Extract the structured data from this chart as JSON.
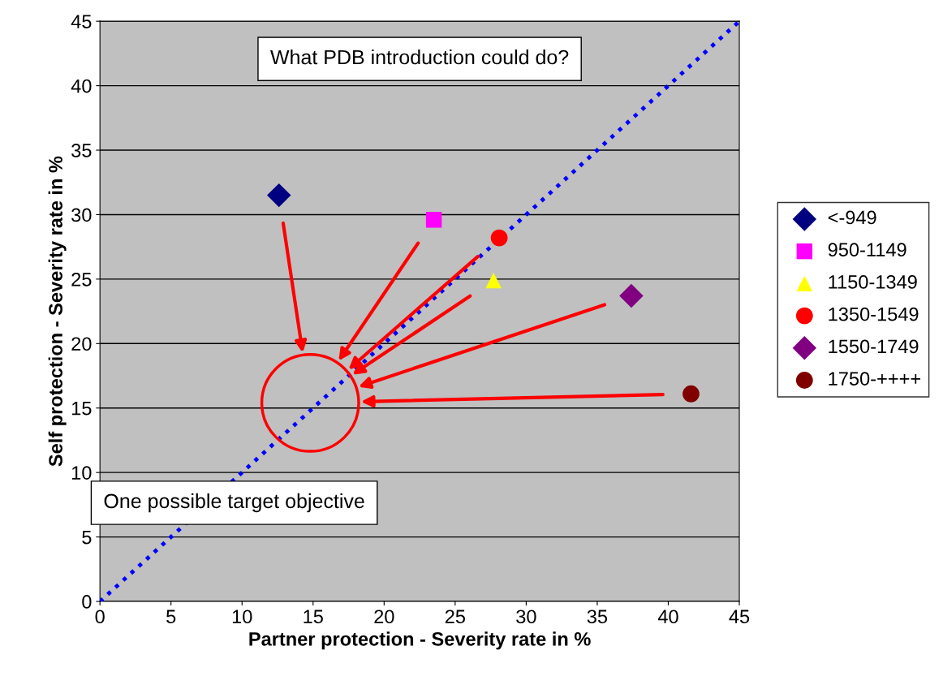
{
  "chart_data": {
    "type": "scatter",
    "title": "What PDB introduction could do?",
    "xlabel": "Partner protection - Severity rate in %",
    "ylabel": "Self protection - Severity rate in %",
    "series": [
      {
        "name": "<-949",
        "color": "#000080",
        "marker": "diamond",
        "x": [
          12.6
        ],
        "values": [
          31.5
        ]
      },
      {
        "name": "950-1149",
        "color": "#ff00ff",
        "marker": "square",
        "x": [
          23.5
        ],
        "values": [
          29.6
        ]
      },
      {
        "name": "1150-1349",
        "color": "#ffff00",
        "marker": "triangle",
        "x": [
          27.7
        ],
        "values": [
          24.9
        ]
      },
      {
        "name": "1350-1549",
        "color": "#ff0000",
        "marker": "circle",
        "x": [
          28.1
        ],
        "values": [
          28.2
        ]
      },
      {
        "name": "1550-1749",
        "color": "#800080",
        "marker": "diamond",
        "x": [
          37.4
        ],
        "values": [
          23.7
        ]
      },
      {
        "name": "1750-++++",
        "color": "#800000",
        "marker": "circle",
        "x": [
          41.6
        ],
        "values": [
          16.1
        ]
      },
      {
        "color": "#ff0000",
        "marker": "circle",
        "x": [
          14.8
        ],
        "values": [
          15.4
        ]
      },
      {
        "type": "line",
        "color": "#0000ff",
        "line_style": "dotted",
        "marker": "none",
        "x": [
          0,
          45
        ],
        "values": [
          0,
          45
        ]
      }
    ],
    "annotations": [
      "One possible target objective"
    ],
    "xlim": [
      0,
      45
    ],
    "ylim": [
      0,
      45
    ],
    "xticks": [
      0,
      5,
      10,
      15,
      20,
      25,
      30,
      35,
      40,
      45
    ],
    "yticks": [
      0,
      5,
      10,
      15,
      20,
      25,
      30,
      35,
      40,
      45
    ],
    "grid": "y",
    "legend": "right"
  }
}
